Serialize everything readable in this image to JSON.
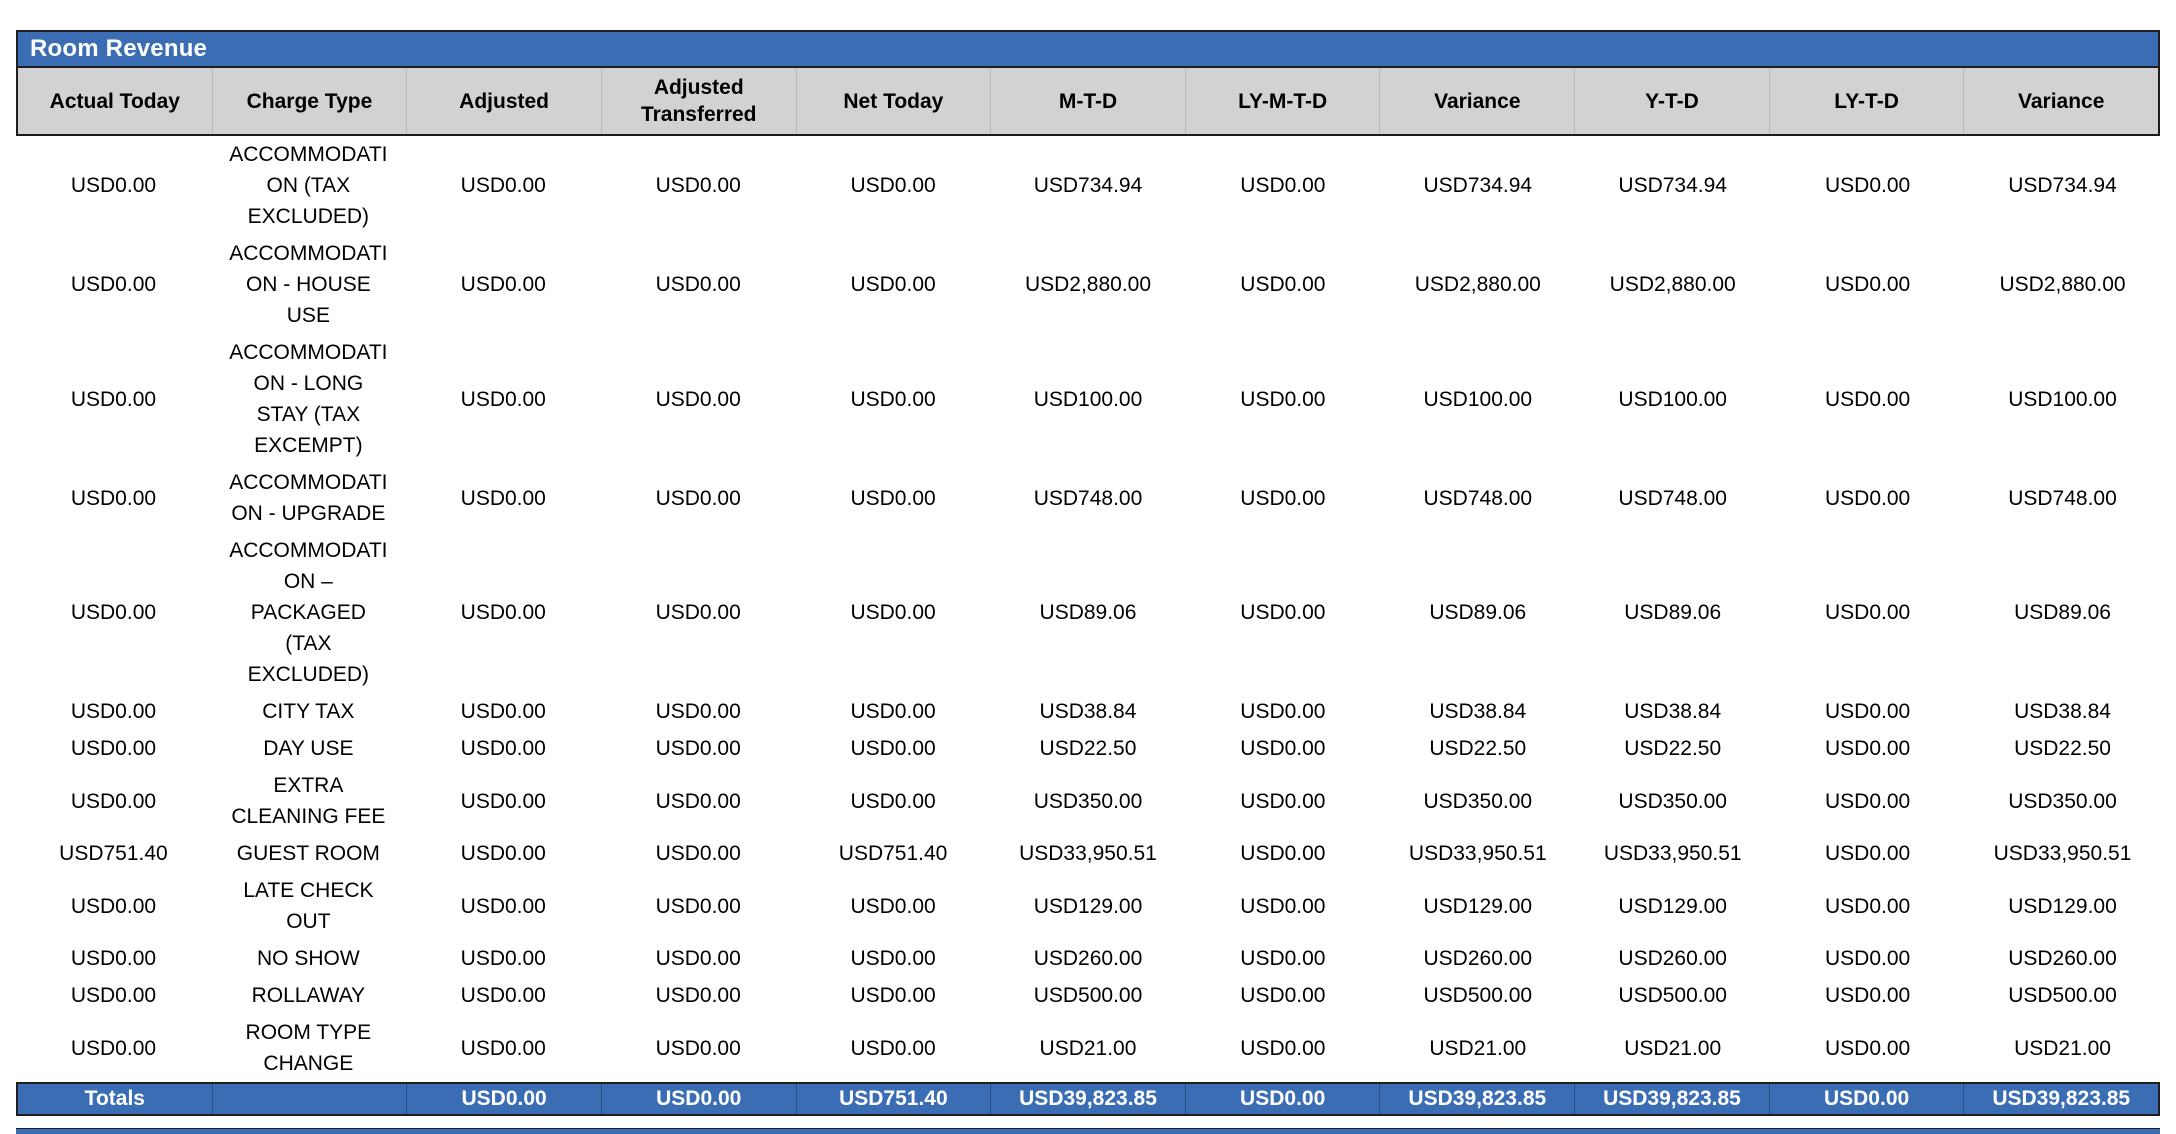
{
  "colors": {
    "accent_blue": "#3B6DB5",
    "header_gray": "#D2D2D2",
    "border_dark": "#1E1E1E",
    "bar_text": "#FFFFFF",
    "body_text": "#000000"
  },
  "report": {
    "title": "Room Revenue",
    "columns": [
      "Actual Today",
      "Charge Type",
      "Adjusted",
      "Adjusted\nTransferred",
      "Net Today",
      "M-T-D",
      "LY-M-T-D",
      "Variance",
      "Y-T-D",
      "LY-T-D",
      "Variance"
    ],
    "rows": [
      {
        "cells": [
          "USD0.00",
          "ACCOMMODATI\nON (TAX\nEXCLUDED)",
          "USD0.00",
          "USD0.00",
          "USD0.00",
          "USD734.94",
          "USD0.00",
          "USD734.94",
          "USD734.94",
          "USD0.00",
          "USD734.94"
        ]
      },
      {
        "cells": [
          "USD0.00",
          "ACCOMMODATI\nON - HOUSE\nUSE",
          "USD0.00",
          "USD0.00",
          "USD0.00",
          "USD2,880.00",
          "USD0.00",
          "USD2,880.00",
          "USD2,880.00",
          "USD0.00",
          "USD2,880.00"
        ]
      },
      {
        "cells": [
          "USD0.00",
          "ACCOMMODATI\nON - LONG\nSTAY (TAX\nEXCEMPT)",
          "USD0.00",
          "USD0.00",
          "USD0.00",
          "USD100.00",
          "USD0.00",
          "USD100.00",
          "USD100.00",
          "USD0.00",
          "USD100.00"
        ]
      },
      {
        "cells": [
          "USD0.00",
          "ACCOMMODATI\nON - UPGRADE",
          "USD0.00",
          "USD0.00",
          "USD0.00",
          "USD748.00",
          "USD0.00",
          "USD748.00",
          "USD748.00",
          "USD0.00",
          "USD748.00"
        ]
      },
      {
        "cells": [
          "USD0.00",
          "ACCOMMODATI\nON –\nPACKAGED\n(TAX\nEXCLUDED)",
          "USD0.00",
          "USD0.00",
          "USD0.00",
          "USD89.06",
          "USD0.00",
          "USD89.06",
          "USD89.06",
          "USD0.00",
          "USD89.06"
        ]
      },
      {
        "cells": [
          "USD0.00",
          "CITY TAX",
          "USD0.00",
          "USD0.00",
          "USD0.00",
          "USD38.84",
          "USD0.00",
          "USD38.84",
          "USD38.84",
          "USD0.00",
          "USD38.84"
        ]
      },
      {
        "cells": [
          "USD0.00",
          "DAY USE",
          "USD0.00",
          "USD0.00",
          "USD0.00",
          "USD22.50",
          "USD0.00",
          "USD22.50",
          "USD22.50",
          "USD0.00",
          "USD22.50"
        ]
      },
      {
        "cells": [
          "USD0.00",
          "EXTRA\nCLEANING FEE",
          "USD0.00",
          "USD0.00",
          "USD0.00",
          "USD350.00",
          "USD0.00",
          "USD350.00",
          "USD350.00",
          "USD0.00",
          "USD350.00"
        ]
      },
      {
        "cells": [
          "USD751.40",
          "GUEST ROOM",
          "USD0.00",
          "USD0.00",
          "USD751.40",
          "USD33,950.51",
          "USD0.00",
          "USD33,950.51",
          "USD33,950.51",
          "USD0.00",
          "USD33,950.51"
        ]
      },
      {
        "cells": [
          "USD0.00",
          "LATE CHECK\nOUT",
          "USD0.00",
          "USD0.00",
          "USD0.00",
          "USD129.00",
          "USD0.00",
          "USD129.00",
          "USD129.00",
          "USD0.00",
          "USD129.00"
        ]
      },
      {
        "cells": [
          "USD0.00",
          "NO SHOW",
          "USD0.00",
          "USD0.00",
          "USD0.00",
          "USD260.00",
          "USD0.00",
          "USD260.00",
          "USD260.00",
          "USD0.00",
          "USD260.00"
        ]
      },
      {
        "cells": [
          "USD0.00",
          "ROLLAWAY",
          "USD0.00",
          "USD0.00",
          "USD0.00",
          "USD500.00",
          "USD0.00",
          "USD500.00",
          "USD500.00",
          "USD0.00",
          "USD500.00"
        ]
      },
      {
        "cells": [
          "USD0.00",
          "ROOM TYPE\nCHANGE",
          "USD0.00",
          "USD0.00",
          "USD0.00",
          "USD21.00",
          "USD0.00",
          "USD21.00",
          "USD21.00",
          "USD0.00",
          "USD21.00"
        ]
      }
    ],
    "totals": [
      "Totals",
      "",
      "USD0.00",
      "USD0.00",
      "USD751.40",
      "USD39,823.85",
      "USD0.00",
      "USD39,823.85",
      "USD39,823.85",
      "USD0.00",
      "USD39,823.85"
    ]
  }
}
